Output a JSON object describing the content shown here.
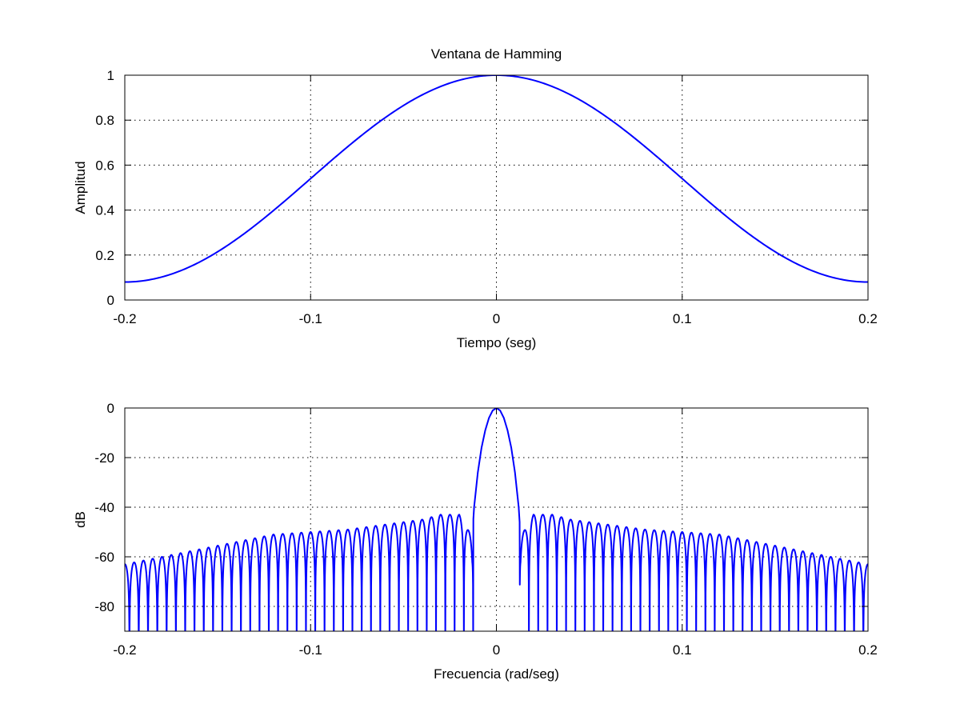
{
  "chart_data": [
    {
      "type": "line",
      "title": "Ventana de Hamming",
      "xlabel": "Tiempo (seg)",
      "ylabel": "Amplitud",
      "xlim": [
        -0.2,
        0.2
      ],
      "ylim": [
        0,
        1
      ],
      "xticks": [
        -0.2,
        -0.1,
        0,
        0.1,
        0.2
      ],
      "xtick_labels": [
        "-0.2",
        "-0.1",
        "0",
        "0.1",
        "0.2"
      ],
      "yticks": [
        0,
        0.2,
        0.4,
        0.6,
        0.8,
        1
      ],
      "ytick_labels": [
        "0",
        "0.2",
        "0.4",
        "0.6",
        "0.8",
        "1"
      ],
      "grid": true,
      "series": [
        {
          "color": "#0000ff",
          "x": [
            -0.2,
            -0.18,
            -0.16,
            -0.14,
            -0.12,
            -0.1,
            -0.08,
            -0.06,
            -0.04,
            -0.02,
            0,
            0.02,
            0.04,
            0.06,
            0.08,
            0.1,
            0.12,
            0.14,
            0.16,
            0.18,
            0.2
          ],
          "y": [
            0.08,
            0.1025,
            0.1679,
            0.2696,
            0.3979,
            0.54,
            0.6821,
            0.8104,
            0.9121,
            0.9775,
            1.0,
            0.9775,
            0.9121,
            0.8104,
            0.6821,
            0.54,
            0.3979,
            0.2696,
            0.1679,
            0.1025,
            0.08
          ]
        }
      ]
    },
    {
      "type": "line",
      "title": "",
      "xlabel": "Frecuencia (rad/seg)",
      "ylabel": "dB",
      "xlim": [
        -0.2,
        0.2
      ],
      "ylim": [
        -90,
        0
      ],
      "xticks": [
        -0.2,
        -0.1,
        0,
        0.1,
        0.2
      ],
      "xtick_labels": [
        "-0.2",
        "-0.1",
        "0",
        "0.1",
        "0.2"
      ],
      "yticks": [
        -80,
        -60,
        -40,
        -20,
        0
      ],
      "ytick_labels": [
        "-80",
        "-60",
        "-40",
        "-20",
        "0"
      ],
      "grid": true,
      "series": [
        {
          "color": "#0000ff",
          "x": [
            -0.2,
            -0.12,
            -0.08,
            -0.04,
            -0.03,
            -0.02,
            -0.013,
            -0.012,
            -0.01,
            -0.008,
            -0.006,
            -0.004,
            -0.002,
            0,
            0.002,
            0.004,
            0.006,
            0.008,
            0.01,
            0.012,
            0.013,
            0.02,
            0.03,
            0.04,
            0.08,
            0.12,
            0.2
          ],
          "y": [
            -63,
            -51,
            -49,
            -45,
            -43,
            -43,
            -52,
            -40,
            -26,
            -16,
            -9,
            -4,
            -1,
            0,
            -1,
            -4,
            -9,
            -16,
            -26,
            -40,
            -52,
            -43,
            -43,
            -45,
            -49,
            -51,
            -63
          ]
        }
      ]
    }
  ]
}
